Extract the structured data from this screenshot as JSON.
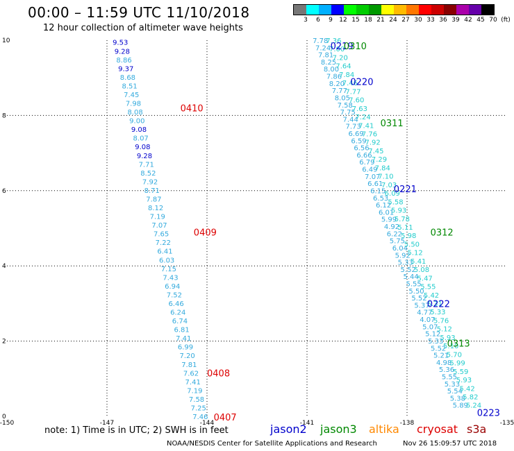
{
  "header": {
    "title": "00:00 – 11:59 UTC 11/10/2018",
    "subtitle": "12 hour collection of altimeter wave heights"
  },
  "color_scale": {
    "colors": [
      "#777777",
      "#00ffff",
      "#00b0ff",
      "#0000ff",
      "#00ff00",
      "#00cc00",
      "#009900",
      "#ffff00",
      "#ffbb00",
      "#ff7700",
      "#ff0000",
      "#cc0000",
      "#880000",
      "#aa00aa",
      "#6600aa",
      "#000000"
    ],
    "labels": [
      "3",
      "6",
      "9",
      "12",
      "15",
      "18",
      "21",
      "24",
      "27",
      "30",
      "33",
      "36",
      "39",
      "42",
      "45",
      "70",
      "(ft)"
    ]
  },
  "footer": {
    "note": "note:  1) Time is in UTC;  2) SWH is in feet",
    "credit": "NOAA/NESDIS Center for Satellite Applications and Research",
    "date": "Nov 26 15:09:57 UTC 2018"
  },
  "legend": [
    {
      "name": "jason2",
      "color": "#0000cc"
    },
    {
      "name": "jason3",
      "color": "#008800"
    },
    {
      "name": "altika",
      "color": "#ff8800"
    },
    {
      "name": "cryosat",
      "color": "#dd0000"
    },
    {
      "name": "s3a",
      "color": "#990000"
    }
  ],
  "chart_data": {
    "type": "scatter",
    "x_ticks": [
      "-150",
      "-147",
      "-144",
      "-141",
      "-138",
      "-135"
    ],
    "y_ticks": [
      "0",
      "2",
      "4",
      "6",
      "8",
      "10"
    ],
    "xlim": [
      -150,
      -135
    ],
    "ylim": [
      0,
      10
    ],
    "grid": true,
    "point_colors": {
      "light": "#33aadd",
      "blue": "#0000cc",
      "cyan": "#22cccc"
    },
    "track1": {
      "lon_start": -146.6,
      "lon_end": -144.2,
      "lat_start": 9.95,
      "lat_end": 0.0,
      "values": [
        "9.53",
        "9.28",
        "8.86",
        "9.37",
        "8.68",
        "8.51",
        "7.45",
        "7.98",
        "8.08",
        "9.00",
        "9.08",
        "8.07",
        "9.08",
        "9.28",
        "7.71",
        "8.52",
        "7.92",
        "8.71",
        "7.87",
        "8.12",
        "7.19",
        "7.07",
        "7.65",
        "7.22",
        "6.41",
        "6.03",
        "7.15",
        "7.43",
        "6.94",
        "7.52",
        "6.46",
        "6.24",
        "6.74",
        "6.81",
        "7.41",
        "6.99",
        "7.20",
        "7.81",
        "7.62",
        "7.41",
        "7.19",
        "7.58",
        "7.25",
        "7.46"
      ],
      "colors": [
        "blue",
        "blue",
        "light",
        "blue",
        "light",
        "light",
        "light",
        "light",
        "light",
        "light",
        "blue",
        "light",
        "blue",
        "blue",
        "light",
        "light",
        "light",
        "light",
        "light",
        "light",
        "light",
        "light",
        "light",
        "light",
        "light",
        "light",
        "light",
        "light",
        "light",
        "light",
        "light",
        "light",
        "light",
        "light",
        "light",
        "light",
        "light",
        "light",
        "light",
        "light",
        "light",
        "light",
        "light",
        "light"
      ]
    },
    "track2": {
      "lon_start": -140.6,
      "lon_end": -136.4,
      "lat_start": 10.0,
      "lat_end": 0.3,
      "values": [
        "7.78",
        "7.24",
        "7.81",
        "8.25",
        "8.00",
        "7.86",
        "8.20",
        "7.77",
        "8.05",
        "7.58",
        "7.75",
        "7.44",
        "7.73",
        "6.69",
        "6.59",
        "6.56",
        "6.66",
        "6.79",
        "6.49",
        "7.07",
        "6.61",
        "6.15",
        "6.53",
        "6.12",
        "6.01",
        "5.99",
        "4.92",
        "6.22",
        "5.75",
        "6.04",
        "5.92",
        "5.33",
        "5.52",
        "5.44",
        "5.55",
        "5.50",
        "5.52",
        "5.37",
        "4.77",
        "4.07",
        "5.07",
        "5.12",
        "5.33",
        "5.52",
        "5.21",
        "4.98",
        "5.36",
        "5.55",
        "5.33",
        "5.54",
        "5.38",
        "5.89"
      ],
      "colors": [
        "light",
        "light",
        "light",
        "light",
        "light",
        "light",
        "light",
        "light",
        "light",
        "light",
        "light",
        "light",
        "light",
        "light",
        "light",
        "light",
        "light",
        "light",
        "light",
        "light",
        "light",
        "light",
        "light",
        "light",
        "light",
        "light",
        "light",
        "light",
        "light",
        "light",
        "light",
        "light",
        "light",
        "light",
        "light",
        "light",
        "light",
        "light",
        "light",
        "light",
        "light",
        "light",
        "light",
        "light",
        "light",
        "light",
        "light",
        "light",
        "light",
        "light",
        "light",
        "light"
      ]
    },
    "track3": {
      "lon_start": -140.2,
      "lon_end": -136.0,
      "lat_start": 10.0,
      "lat_end": 0.3,
      "values": [
        "7.36",
        "7.00",
        "7.20",
        "7.64",
        "7.84",
        "7.46",
        "7.77",
        "7.60",
        "7.63",
        "7.24",
        "7.41",
        "7.76",
        "7.92",
        "7.45",
        "7.29",
        "7.84",
        "7.10",
        "7.03",
        "6.09",
        "5.58",
        "5.93",
        "5.78",
        "5.11",
        "5.98",
        "5.50",
        "5.12",
        "5.41",
        "5.08",
        "5.47",
        "5.55",
        "5.42",
        "5.31",
        "5.33",
        "5.76",
        "5.12",
        "5.93",
        "5.10",
        "5.70",
        "5.99",
        "5.59",
        "5.93",
        "5.42",
        "5.82",
        "5.24"
      ],
      "colors": [
        "cyan",
        "cyan",
        "cyan",
        "cyan",
        "cyan",
        "cyan",
        "cyan",
        "cyan",
        "cyan",
        "cyan",
        "cyan",
        "cyan",
        "cyan",
        "cyan",
        "cyan",
        "cyan",
        "cyan",
        "cyan",
        "cyan",
        "cyan",
        "cyan",
        "cyan",
        "cyan",
        "cyan",
        "cyan",
        "cyan",
        "cyan",
        "cyan",
        "cyan",
        "cyan",
        "cyan",
        "cyan",
        "cyan",
        "cyan",
        "cyan",
        "cyan",
        "cyan",
        "cyan",
        "cyan",
        "cyan",
        "cyan",
        "cyan",
        "cyan",
        "cyan"
      ]
    },
    "time_labels": [
      {
        "text": "0410",
        "lon": -144.8,
        "lat": 8.2,
        "color": "#dd0000"
      },
      {
        "text": "0409",
        "lon": -144.4,
        "lat": 4.9,
        "color": "#dd0000"
      },
      {
        "text": "0408",
        "lon": -144.0,
        "lat": 1.15,
        "color": "#dd0000"
      },
      {
        "text": "0407",
        "lon": -143.8,
        "lat": -0.02,
        "color": "#dd0000"
      },
      {
        "text": "0219",
        "lon": -140.3,
        "lat": 9.85,
        "color": "#0000cc"
      },
      {
        "text": "0310",
        "lon": -139.9,
        "lat": 9.85,
        "color": "#008800"
      },
      {
        "text": "0220",
        "lon": -139.7,
        "lat": 8.9,
        "color": "#0000cc"
      },
      {
        "text": "0311",
        "lon": -138.8,
        "lat": 7.8,
        "color": "#008800"
      },
      {
        "text": "0221",
        "lon": -138.4,
        "lat": 6.05,
        "color": "#0000cc"
      },
      {
        "text": "0312",
        "lon": -137.3,
        "lat": 4.9,
        "color": "#008800"
      },
      {
        "text": "0222",
        "lon": -137.4,
        "lat": 3.0,
        "color": "#0000cc"
      },
      {
        "text": "0313",
        "lon": -136.8,
        "lat": 1.95,
        "color": "#008800"
      },
      {
        "text": "0223",
        "lon": -135.9,
        "lat": 0.1,
        "color": "#0000cc"
      }
    ]
  }
}
